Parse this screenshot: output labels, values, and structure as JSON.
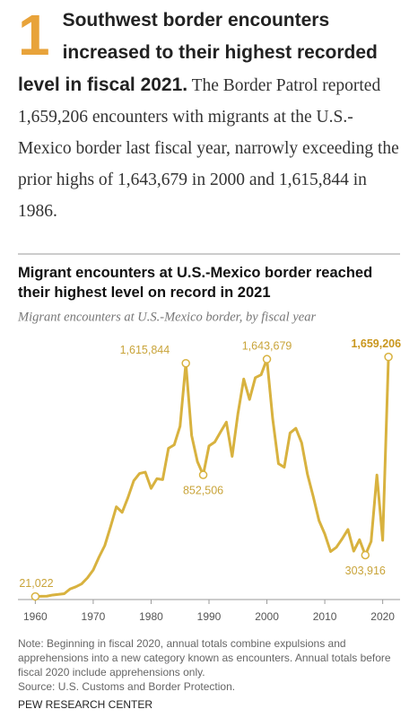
{
  "intro": {
    "number": "1",
    "headline": "Southwest border encounters increased to their highest recorded level in fiscal 2021.",
    "body": "The Border Patrol reported 1,659,206 encounters with migrants at the U.S.-Mexico border last fiscal year, narrowly exceeding the prior highs of 1,643,679 in 2000 and 1,615,844 in 1986."
  },
  "chart_data": {
    "type": "line",
    "title": "Migrant encounters at U.S.-Mexico border reached their highest level on record in 2021",
    "subtitle": "Migrant encounters at U.S.-Mexico border, by fiscal year",
    "x": [
      1960,
      1961,
      1962,
      1963,
      1964,
      1965,
      1966,
      1967,
      1968,
      1969,
      1970,
      1971,
      1972,
      1973,
      1974,
      1975,
      1976,
      1977,
      1978,
      1979,
      1980,
      1981,
      1982,
      1983,
      1984,
      1985,
      1986,
      1987,
      1988,
      1989,
      1990,
      1991,
      1992,
      1993,
      1994,
      1995,
      1996,
      1997,
      1998,
      1999,
      2000,
      2001,
      2002,
      2003,
      2004,
      2005,
      2006,
      2007,
      2008,
      2009,
      2010,
      2011,
      2012,
      2013,
      2014,
      2015,
      2016,
      2017,
      2018,
      2019,
      2020,
      2021
    ],
    "series": [
      {
        "name": "Migrant encounters",
        "color": "#d8b23f",
        "values": [
          21022,
          22000,
          23000,
          31000,
          35000,
          40000,
          72000,
          87000,
          107000,
          148000,
          202000,
          290000,
          369000,
          498000,
          634000,
          596000,
          697000,
          812000,
          862000,
          871000,
          760000,
          826000,
          820000,
          1034000,
          1058000,
          1185000,
          1615844,
          1122000,
          943000,
          852506,
          1050000,
          1077000,
          1146000,
          1213000,
          979000,
          1272000,
          1508000,
          1368000,
          1517000,
          1537000,
          1643679,
          1236000,
          929000,
          905000,
          1139000,
          1171000,
          1072000,
          858000,
          705000,
          540000,
          448000,
          328000,
          357000,
          415000,
          479000,
          331000,
          409000,
          303916,
          397000,
          851508,
          405036,
          1659206
        ],
        "value_labels": [
          "21,022",
          null,
          null,
          null,
          null,
          null,
          null,
          null,
          null,
          null,
          null,
          null,
          null,
          null,
          null,
          null,
          null,
          null,
          null,
          null,
          null,
          null,
          null,
          null,
          null,
          null,
          "1,615,844",
          null,
          null,
          "852,506",
          null,
          null,
          null,
          null,
          null,
          null,
          null,
          null,
          null,
          null,
          "1,643,679",
          null,
          null,
          null,
          null,
          null,
          null,
          null,
          null,
          null,
          null,
          null,
          null,
          null,
          null,
          null,
          null,
          "303,916",
          null,
          null,
          null,
          "1,659,206"
        ]
      }
    ],
    "xlim": [
      1957,
      2023
    ],
    "xticks": [
      1960,
      1970,
      1980,
      1990,
      2000,
      2010,
      2020
    ],
    "ylim": [
      0,
      1700000
    ],
    "note": "Note: Beginning in fiscal 2020, annual totals combine expulsions and apprehensions into a new category known as encounters. Annual totals before fiscal 2020 include apprehensions only.",
    "source": "Source: U.S. Customs and Border Protection.",
    "credit": "PEW RESEARCH CENTER"
  }
}
